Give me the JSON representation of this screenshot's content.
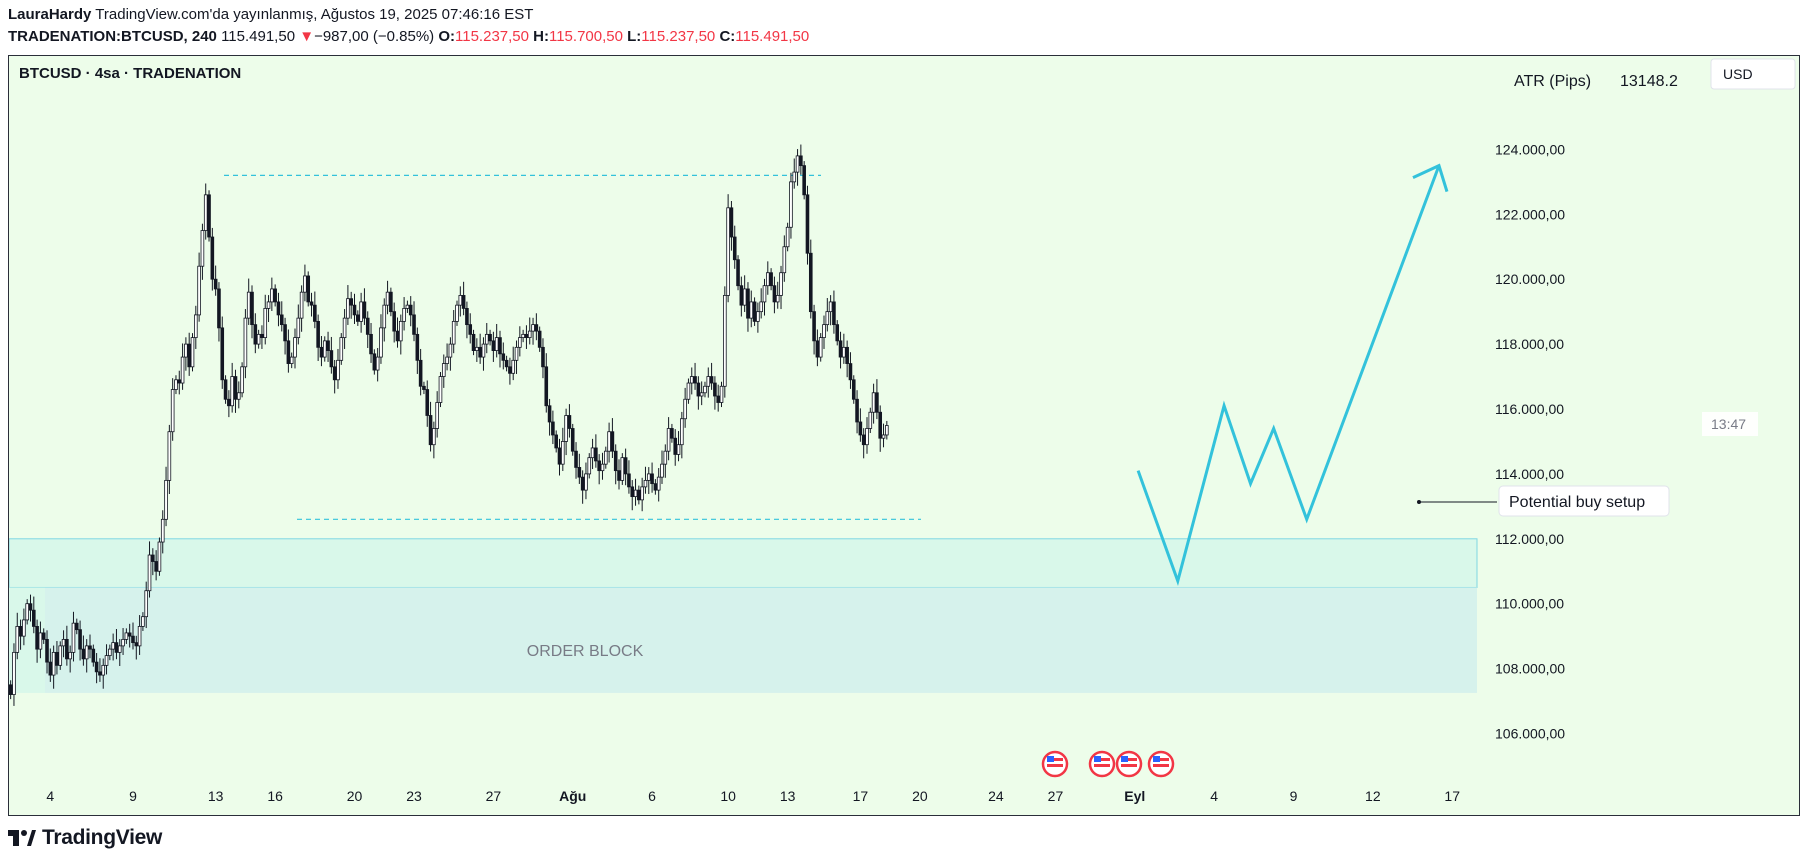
{
  "header": {
    "author": "LauraHardy",
    "published": "TradingView.com'da yayınlanmış, Ağustos 19, 2025 07:46:16 EST",
    "symbol": "TRADENATION:BTCUSD, 240",
    "price": "115.491,50",
    "change_arrow": "▼",
    "change": "−987,00 (−0.85%)",
    "o_label": "O:",
    "o_value": "115.237,50",
    "h_label": "H:",
    "h_value": "115.700,50",
    "l_label": "L:",
    "l_value": "115.237,50",
    "c_label": "C:",
    "c_value": "115.491,50"
  },
  "chart_title": "BTCUSD · 4sa · TRADENATION",
  "indicator": {
    "name": "ATR (Pips)",
    "value": "13148.2"
  },
  "currency": "USD",
  "countdown": "13:47",
  "order_block_label": "ORDER BLOCK",
  "annotation": "Potential buy setup",
  "footer": {
    "brand": "TradingView"
  },
  "colors": {
    "background": "#edfdea",
    "accent": "#33c2db",
    "down": "#f23645",
    "zone_upper": "#d9f8ea",
    "zone_lower": "#d6f2ec"
  },
  "chart_data": {
    "type": "candlestick",
    "symbol": "BTCUSD",
    "timeframe": "4sa",
    "ylim": [
      104500,
      125000
    ],
    "y_ticks": [
      106000,
      108000,
      110000,
      112000,
      114000,
      116000,
      118000,
      120000,
      122000,
      124000
    ],
    "y_tick_labels": [
      "106.000,00",
      "108.000,00",
      "110.000,00",
      "112.000,00",
      "114.000,00",
      "116.000,00",
      "118.000,00",
      "120.000,00",
      "122.000,00",
      "124.000,00"
    ],
    "x_tick_labels": [
      "4",
      "9",
      "13",
      "16",
      "20",
      "23",
      "27",
      "Ağu",
      "6",
      "10",
      "13",
      "17",
      "20",
      "24",
      "27",
      "Eyl",
      "4",
      "9",
      "12",
      "17"
    ],
    "x_tick_bold": [
      false,
      false,
      false,
      false,
      false,
      false,
      false,
      true,
      false,
      false,
      false,
      false,
      false,
      false,
      false,
      true,
      false,
      false,
      false,
      false
    ],
    "x_tick_slots": [
      12,
      37,
      62,
      80,
      104,
      122,
      146,
      170,
      194,
      217,
      235,
      257,
      275,
      298,
      316,
      340,
      364,
      388,
      412,
      436
    ],
    "x_slots": 444,
    "close_series": [
      107200,
      108500,
      109300,
      109000,
      109500,
      110000,
      109800,
      109300,
      108600,
      109100,
      108900,
      108200,
      107800,
      108500,
      108100,
      108700,
      108900,
      108300,
      108500,
      109400,
      109200,
      108600,
      108300,
      108700,
      108600,
      108200,
      107900,
      107800,
      108100,
      108400,
      108600,
      108800,
      108500,
      108700,
      108900,
      109100,
      109000,
      108800,
      108700,
      109300,
      109600,
      110400,
      111500,
      111300,
      111000,
      111900,
      112600,
      113800,
      115300,
      116600,
      116900,
      116800,
      117600,
      118000,
      117300,
      118200,
      118900,
      120400,
      121500,
      122600,
      121300,
      120000,
      119700,
      118500,
      116900,
      116300,
      116100,
      117000,
      116300,
      116500,
      117300,
      118800,
      119600,
      118600,
      118000,
      118300,
      118200,
      119100,
      119300,
      119700,
      119300,
      118900,
      118600,
      118100,
      117400,
      117600,
      118200,
      118800,
      119600,
      120100,
      119300,
      119200,
      118700,
      117900,
      117600,
      118100,
      117800,
      117300,
      116900,
      117500,
      118200,
      118800,
      119400,
      119200,
      118900,
      118700,
      119300,
      118800,
      118300,
      117700,
      117200,
      117600,
      118500,
      119200,
      119600,
      119000,
      118400,
      118100,
      118700,
      119100,
      119200,
      118900,
      118300,
      117500,
      116700,
      116600,
      115800,
      114900,
      115400,
      116200,
      117000,
      117400,
      117600,
      118000,
      118700,
      119200,
      119500,
      119100,
      118600,
      118300,
      117800,
      117900,
      117600,
      118000,
      118300,
      118100,
      117800,
      118200,
      117700,
      117500,
      117300,
      117100,
      117500,
      117900,
      118200,
      118300,
      118200,
      118400,
      118600,
      118400,
      117900,
      117300,
      116100,
      115600,
      115200,
      114800,
      114300,
      115000,
      115800,
      115400,
      114700,
      114200,
      113900,
      113500,
      114000,
      114500,
      114800,
      114400,
      114100,
      114300,
      114700,
      115300,
      114700,
      114100,
      113800,
      114500,
      114000,
      113600,
      113300,
      113500,
      113200,
      113600,
      113800,
      114000,
      113700,
      113500,
      113900,
      114300,
      114700,
      115400,
      115100,
      114600,
      114900,
      115700,
      116300,
      116800,
      117000,
      116800,
      116400,
      116500,
      116700,
      117000,
      116800,
      116400,
      116200,
      116700,
      119500,
      122200,
      121300,
      120600,
      119800,
      119200,
      119700,
      118800,
      119300,
      118700,
      119000,
      119300,
      119800,
      120200,
      119800,
      119300,
      119500,
      120200,
      121000,
      121600,
      123000,
      123300,
      123800,
      123500,
      122600,
      120800,
      119000,
      118100,
      117600,
      118200,
      118600,
      119000,
      119300,
      118600,
      118100,
      117600,
      117900,
      117400,
      116900,
      116300,
      115600,
      115200,
      114900,
      115400,
      115900,
      116500,
      115900,
      115100,
      115200,
      115491.5
    ],
    "horizontal_levels": [
      {
        "style": "dashed",
        "value": 123200
      },
      {
        "style": "dashed",
        "value": 112600
      }
    ],
    "zones": [
      {
        "name": "upper",
        "from": 110500,
        "to": 112000
      },
      {
        "name": "order_block",
        "from": 107250,
        "to": 110500
      }
    ],
    "projection_path": [
      [
        113300,
        0
      ],
      [
        108900,
        0
      ],
      [
        114500,
        0
      ],
      [
        112500,
        0
      ],
      [
        113800,
        0
      ],
      [
        111200,
        0
      ],
      [
        124100,
        0
      ]
    ],
    "projection_path_x_slots": [
      341,
      353,
      367,
      375,
      382,
      392,
      432
    ],
    "projection_path_values": [
      114100,
      110700,
      116100,
      113700,
      115400,
      112600,
      123500
    ]
  }
}
